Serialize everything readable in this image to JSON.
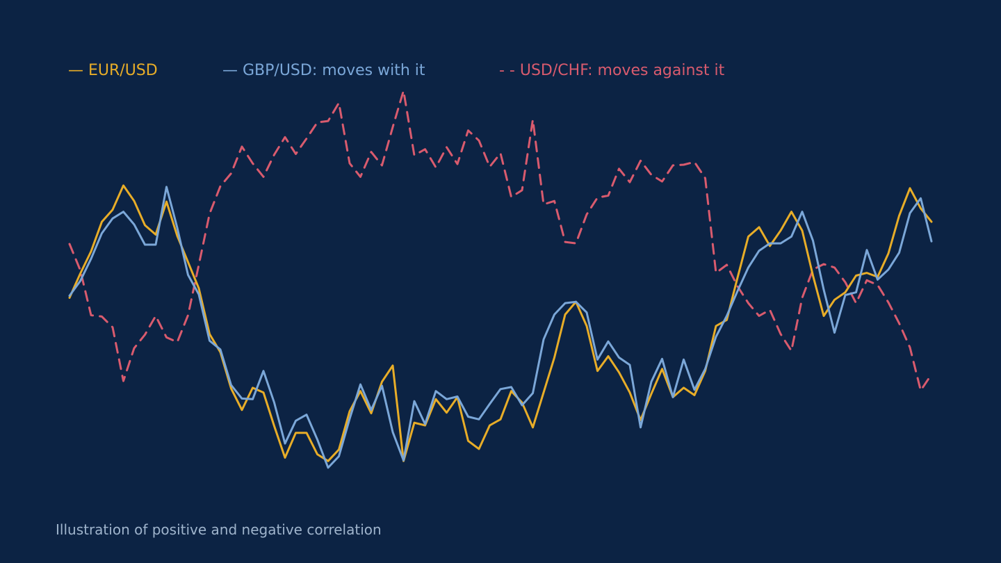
{
  "caption": "Illustration of positive and negative correlation",
  "chart_data": {
    "type": "line",
    "title": "",
    "xlabel": "",
    "ylabel": "",
    "grid": false,
    "legend_position": "top-left",
    "ylim": [
      -3.0,
      3.0
    ],
    "x": [
      0,
      1,
      2,
      3,
      4,
      5,
      6,
      7,
      8,
      9,
      10,
      11,
      12,
      13,
      14,
      15,
      16,
      17,
      18,
      19,
      20,
      21,
      22,
      23,
      24,
      25,
      26,
      27,
      28,
      29,
      30,
      31,
      32,
      33,
      34,
      35,
      36,
      37,
      38,
      39,
      40,
      41,
      42,
      43,
      44,
      45,
      46,
      47,
      48,
      49,
      50,
      51,
      52,
      53,
      54,
      55,
      56,
      57,
      58,
      59,
      60,
      61,
      62,
      63,
      64,
      65,
      66,
      67,
      68,
      69,
      70,
      71,
      72,
      73,
      74,
      75,
      76,
      77,
      78,
      79,
      80
    ],
    "series": [
      {
        "name": "EUR/USD",
        "legend_label": "— EUR/USD",
        "color": "#e8ad28",
        "dash": "solid",
        "values": [
          -0.19,
          0.17,
          0.5,
          0.94,
          1.12,
          1.48,
          1.25,
          0.89,
          0.75,
          1.24,
          0.73,
          0.34,
          -0.05,
          -0.73,
          -1.0,
          -1.54,
          -1.86,
          -1.53,
          -1.6,
          -2.1,
          -2.57,
          -2.2,
          -2.2,
          -2.52,
          -2.62,
          -2.45,
          -1.88,
          -1.58,
          -1.91,
          -1.44,
          -1.2,
          -2.62,
          -2.05,
          -2.09,
          -1.7,
          -1.9,
          -1.67,
          -2.32,
          -2.44,
          -2.09,
          -2.0,
          -1.58,
          -1.75,
          -2.12,
          -1.6,
          -1.08,
          -0.44,
          -0.25,
          -0.61,
          -1.28,
          -1.06,
          -1.3,
          -1.6,
          -2.01,
          -1.62,
          -1.25,
          -1.67,
          -1.53,
          -1.64,
          -1.28,
          -0.61,
          -0.52,
          0.11,
          0.72,
          0.86,
          0.58,
          0.81,
          1.09,
          0.81,
          0.14,
          -0.46,
          -0.22,
          -0.11,
          0.14,
          0.18,
          0.12,
          0.47,
          1.03,
          1.44,
          1.14,
          0.94
        ]
      },
      {
        "name": "GBP/USD: moves with it",
        "legend_label": "— GBP/USD: moves with it",
        "color": "#7ba7d8",
        "dash": "solid",
        "values": [
          -0.16,
          0.06,
          0.39,
          0.77,
          0.99,
          1.09,
          0.9,
          0.6,
          0.6,
          1.46,
          0.85,
          0.15,
          -0.14,
          -0.83,
          -0.96,
          -1.49,
          -1.69,
          -1.7,
          -1.28,
          -1.75,
          -2.36,
          -2.02,
          -1.93,
          -2.3,
          -2.72,
          -2.55,
          -1.99,
          -1.48,
          -1.86,
          -1.5,
          -2.19,
          -2.61,
          -1.73,
          -2.07,
          -1.58,
          -1.7,
          -1.66,
          -1.96,
          -2.0,
          -1.77,
          -1.55,
          -1.52,
          -1.79,
          -1.61,
          -0.81,
          -0.44,
          -0.27,
          -0.25,
          -0.41,
          -1.11,
          -0.84,
          -1.08,
          -1.19,
          -2.12,
          -1.44,
          -1.1,
          -1.67,
          -1.11,
          -1.56,
          -1.25,
          -0.77,
          -0.46,
          -0.09,
          0.26,
          0.51,
          0.62,
          0.62,
          0.72,
          1.09,
          0.66,
          -0.07,
          -0.71,
          -0.15,
          -0.11,
          0.52,
          0.08,
          0.23,
          0.48,
          1.07,
          1.29,
          0.65
        ]
      },
      {
        "name": "USD/CHF: moves against it",
        "legend_label": "- - USD/CHF: moves against it",
        "color": "#d95b6e",
        "dash": "dashed",
        "values": [
          0.61,
          0.22,
          -0.45,
          -0.47,
          -0.63,
          -1.43,
          -0.94,
          -0.74,
          -0.46,
          -0.78,
          -0.85,
          -0.45,
          0.3,
          1.06,
          1.47,
          1.66,
          2.06,
          1.81,
          1.61,
          1.94,
          2.2,
          1.95,
          2.18,
          2.42,
          2.44,
          2.71,
          1.81,
          1.61,
          1.98,
          1.78,
          2.35,
          2.89,
          1.93,
          2.02,
          1.75,
          2.05,
          1.8,
          2.3,
          2.15,
          1.76,
          1.96,
          1.31,
          1.41,
          2.46,
          1.2,
          1.25,
          0.64,
          0.62,
          1.05,
          1.3,
          1.33,
          1.73,
          1.53,
          1.85,
          1.64,
          1.54,
          1.78,
          1.79,
          1.83,
          1.59,
          0.18,
          0.3,
          -0.02,
          -0.27,
          -0.46,
          -0.37,
          -0.73,
          -0.98,
          -0.19,
          0.23,
          0.31,
          0.26,
          0.04,
          -0.27,
          0.07,
          0.0,
          -0.26,
          -0.57,
          -0.93,
          -1.57,
          -1.33
        ]
      }
    ]
  }
}
